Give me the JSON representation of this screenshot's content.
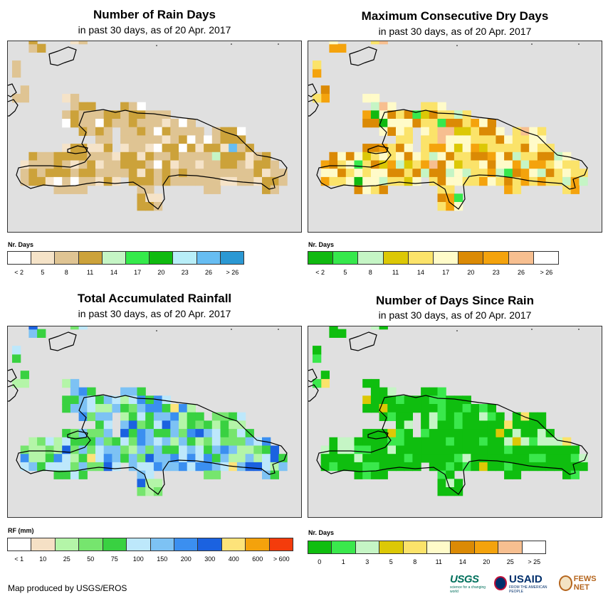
{
  "footer": {
    "credit": "Map produced by USGS/EROS",
    "logo_usgs": "USGS",
    "logo_usgs_tagline": "science for a changing world",
    "logo_usaid": "USAID",
    "logo_usaid_tagline": "FROM THE AMERICAN PEOPLE",
    "logo_fews": "FEWS NET"
  },
  "panels": [
    {
      "id": "rain-days",
      "title": "Number of Rain Days",
      "subtitle": "in past 30 days, as of 20 Apr. 2017",
      "legend_title": "Nr. Days",
      "legend_labels": [
        "< 2",
        "5",
        "8",
        "11",
        "14",
        "17",
        "20",
        "23",
        "26",
        "> 26"
      ],
      "legend_colors": [
        "#ffffff",
        "#f5e3c8",
        "#dfc493",
        "#cca23a",
        "#c5f5c5",
        "#35ea4b",
        "#0fba0f",
        "#b8eef8",
        "#67bdf2",
        "#2b98d3"
      ],
      "cell_class_counts": [
        8,
        20,
        70,
        45,
        3,
        0,
        0,
        0,
        1,
        0
      ]
    },
    {
      "id": "dry-days",
      "title": "Maximum Consecutive Dry Days",
      "subtitle": "in past 30 days, as of 20 Apr. 2017",
      "legend_title": "Nr. Days",
      "legend_labels": [
        "< 2",
        "5",
        "8",
        "11",
        "14",
        "17",
        "20",
        "23",
        "26",
        "> 26"
      ],
      "legend_colors": [
        "#10b910",
        "#36e84c",
        "#c5f5c5",
        "#dcc806",
        "#fbe36a",
        "#fffbc9",
        "#db8a05",
        "#f4a30d",
        "#f7bf90",
        "#ffffff"
      ],
      "cell_class_counts": [
        2,
        3,
        10,
        6,
        40,
        35,
        25,
        20,
        4,
        0
      ]
    },
    {
      "id": "rainfall",
      "title": "Total Accumulated Rainfall",
      "subtitle": "in past 30 days, as of 20 Apr. 2017",
      "legend_title": "RF (mm)",
      "legend_labels": [
        "< 1",
        "10",
        "25",
        "50",
        "75",
        "100",
        "150",
        "200",
        "300",
        "400",
        "600",
        "> 600"
      ],
      "legend_colors": [
        "#ffffff",
        "#f5e0c5",
        "#b4f5a8",
        "#76e56e",
        "#39d141",
        "#bde8fb",
        "#7dc2f4",
        "#3b8ff0",
        "#1b62e0",
        "#fde37a",
        "#f4a20c",
        "#f43c0c"
      ],
      "cell_class_counts": [
        0,
        0,
        25,
        20,
        30,
        20,
        40,
        18,
        12,
        2,
        0,
        0
      ]
    },
    {
      "id": "days-since-rain",
      "title": "Number of Days Since Rain",
      "subtitle": "in past 30 days, as of 20 Apr. 2017",
      "legend_title": "Nr. Days",
      "legend_labels": [
        "0",
        "1",
        "3",
        "5",
        "8",
        "11",
        "14",
        "20",
        "25",
        "> 25"
      ],
      "legend_colors": [
        "#0fbe0f",
        "#3ae84c",
        "#c5f5c5",
        "#dcc806",
        "#fbe36a",
        "#fffbc9",
        "#db8a05",
        "#f4a30d",
        "#f7bf90",
        "#ffffff"
      ],
      "cell_class_counts": [
        110,
        25,
        12,
        2,
        2,
        0,
        0,
        0,
        0,
        0
      ]
    }
  ]
}
